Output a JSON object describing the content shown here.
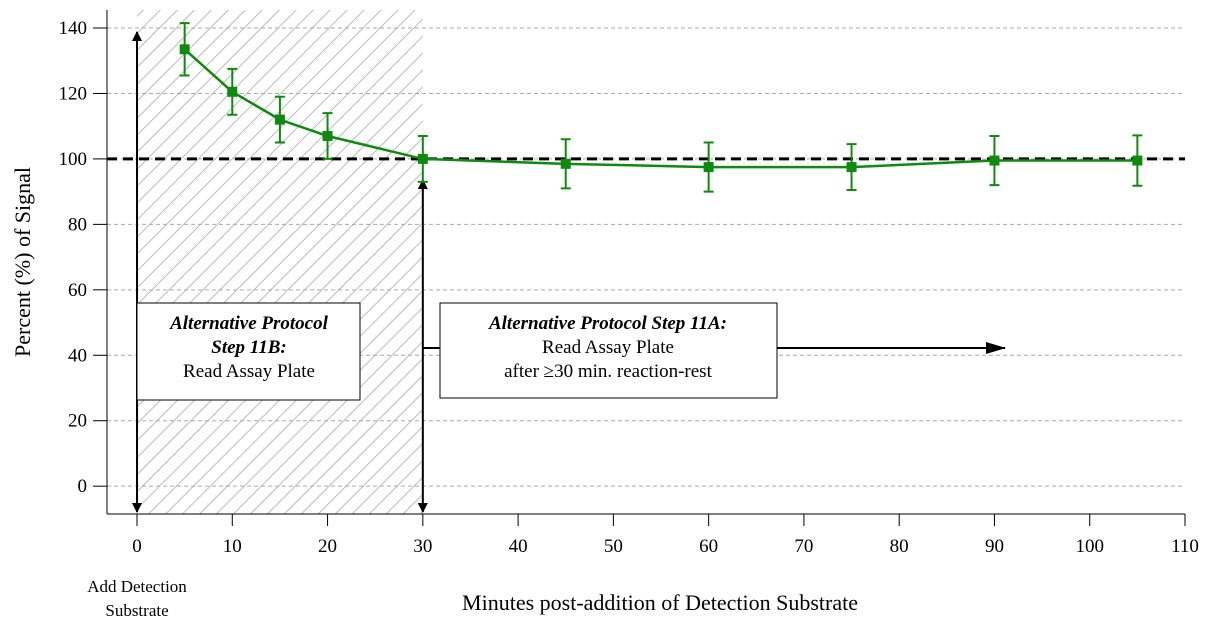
{
  "chart_data": {
    "type": "line",
    "ylabel": "Percent (%) of Signal",
    "xlabel": "Minutes post-addition of Detection Substrate",
    "x": [
      5,
      10,
      15,
      20,
      30,
      45,
      60,
      75,
      90,
      105
    ],
    "series": [
      {
        "color": "#0f8a0f",
        "values": [
          133.5,
          120.5,
          112,
          107,
          100,
          98.5,
          97.5,
          97.5,
          99.5,
          99.5
        ],
        "errors": [
          8,
          7,
          7,
          7,
          7,
          7.5,
          7.5,
          7,
          7.5,
          7.7
        ]
      }
    ],
    "xlim": [
      -3.15,
      110
    ],
    "ylim": [
      -8.5,
      145.5
    ],
    "xticks": [
      0,
      10,
      20,
      30,
      40,
      50,
      60,
      70,
      80,
      90,
      100,
      110
    ],
    "yticks": [
      0,
      20,
      40,
      60,
      80,
      100,
      120,
      140
    ],
    "grid": true,
    "reference_line": 100,
    "shaded_region": [
      0,
      30
    ],
    "annotations": [
      {
        "lines": [
          "Add Detection",
          "Substrate"
        ]
      },
      {
        "heading": [
          "Alternative Protocol",
          "Step 11B:"
        ],
        "text": [
          "Read Assay Plate"
        ]
      },
      {
        "heading": [
          "Alternative Protocol Step 11A:"
        ],
        "text": [
          "Read Assay Plate",
          "after ≥30 min. reaction-rest"
        ]
      }
    ]
  }
}
